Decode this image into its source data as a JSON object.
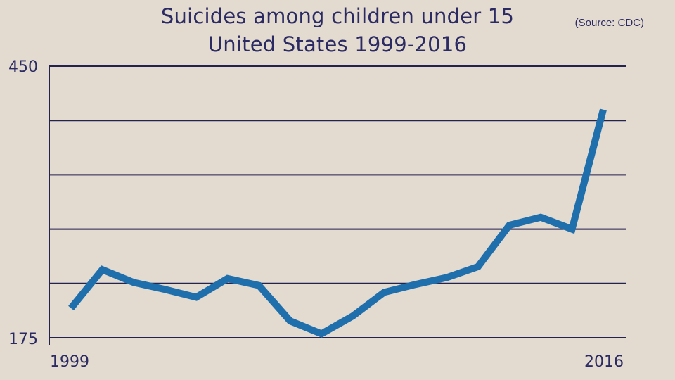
{
  "title_line1": "Suicides among children under 15",
  "title_line2": "United States 1999-2016",
  "source": "(Source: CDC)",
  "colors": {
    "background": "#e3dad0",
    "grid": "#24224f",
    "line": "#1f6fad",
    "text": "#2b2a63"
  },
  "chart_data": {
    "type": "line",
    "title": "Suicides among children under 15 United States 1999-2016",
    "xlabel": "",
    "ylabel": "",
    "x": [
      1999,
      2000,
      2001,
      2002,
      2003,
      2004,
      2005,
      2006,
      2007,
      2008,
      2009,
      2010,
      2011,
      2012,
      2013,
      2014,
      2015,
      2016
    ],
    "series": [
      {
        "values": [
          205,
          244,
          231,
          224,
          216,
          235,
          228,
          192,
          179,
          197,
          221,
          229,
          236,
          247,
          289,
          297,
          285,
          406
        ]
      }
    ],
    "ylim": [
      175,
      450
    ],
    "y_tick_labels": [
      "450",
      "175"
    ],
    "x_tick_labels": [
      "1999",
      "2016"
    ],
    "grid": true,
    "gridlines": 6,
    "legend": "none"
  }
}
